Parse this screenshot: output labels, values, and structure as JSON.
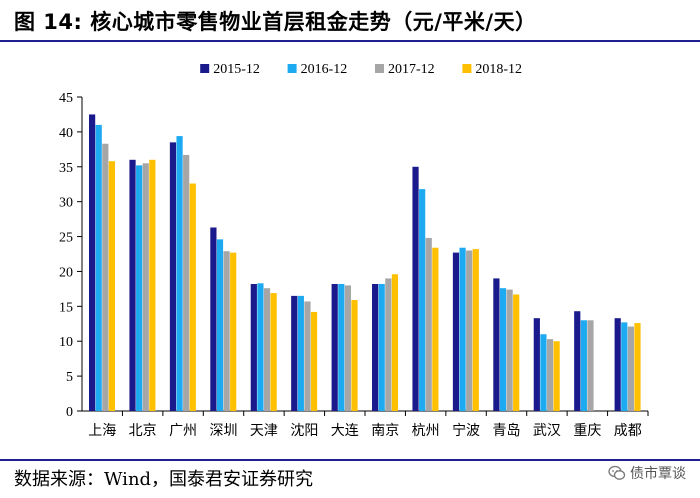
{
  "header": {
    "title": "图 14:  核心城市零售物业首层租金走势（元/平米/天）"
  },
  "footer": {
    "source": "数据来源：Wind，国泰君安证券研究",
    "watermark": "债市覃谈"
  },
  "colors": {
    "rule": "#1f1f8f",
    "axis": "#000000"
  },
  "chart_data": {
    "type": "bar",
    "title": "核心城市零售物业首层租金走势（元/平米/天）",
    "xlabel": "",
    "ylabel": "",
    "ylim": [
      0,
      45
    ],
    "yticks": [
      0,
      5,
      10,
      15,
      20,
      25,
      30,
      35,
      40,
      45
    ],
    "grid": false,
    "legend": "top-center",
    "categories": [
      "上海",
      "北京",
      "广州",
      "深圳",
      "天津",
      "沈阳",
      "大连",
      "南京",
      "杭州",
      "宁波",
      "青岛",
      "武汉",
      "重庆",
      "成都"
    ],
    "series": [
      {
        "name": "2015-12",
        "color": "#1a1a8c",
        "values": [
          42.5,
          36.0,
          38.5,
          26.3,
          18.2,
          16.5,
          18.2,
          18.2,
          35.0,
          22.7,
          19.0,
          13.3,
          14.3,
          13.3
        ]
      },
      {
        "name": "2016-12",
        "color": "#1eaaf0",
        "values": [
          41.0,
          35.2,
          39.4,
          24.6,
          18.3,
          16.5,
          18.2,
          18.2,
          31.8,
          23.4,
          17.6,
          11.0,
          13.0,
          12.7
        ]
      },
      {
        "name": "2017-12",
        "color": "#a6a6a6",
        "values": [
          38.3,
          35.5,
          36.7,
          22.9,
          17.6,
          15.7,
          18.0,
          19.0,
          24.8,
          23.0,
          17.4,
          10.3,
          13.0,
          12.1
        ]
      },
      {
        "name": "2018-12",
        "color": "#ffc000",
        "values": [
          35.8,
          36.0,
          32.6,
          22.7,
          16.9,
          14.2,
          15.9,
          19.6,
          23.4,
          23.2,
          16.7,
          10.0,
          0,
          12.6
        ]
      }
    ]
  }
}
